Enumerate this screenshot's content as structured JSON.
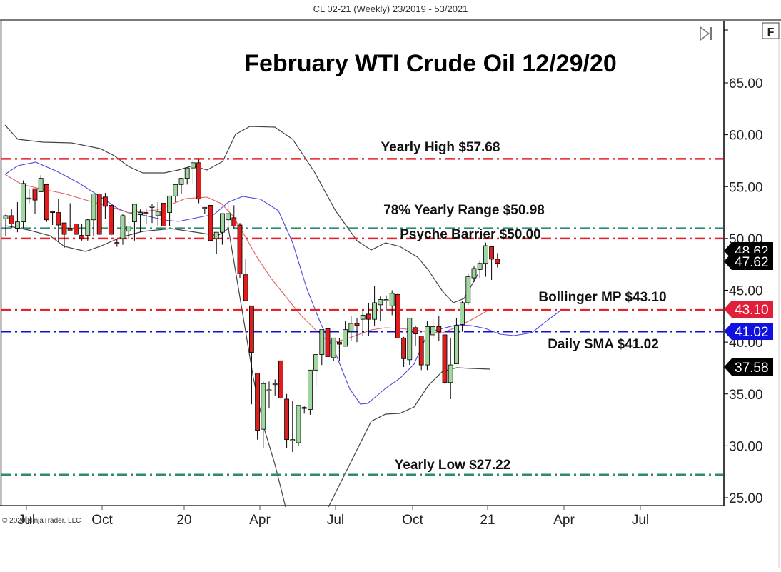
{
  "header": {
    "title": "CL 02-21 (Weekly)  23/2019 - 53/2021"
  },
  "toolbar": {
    "scroll_end_icon": "scroll-to-end-icon",
    "f_button_label": "F"
  },
  "copyright": "© 2020 NinjaTrader, LLC",
  "chart_data": {
    "type": "candlestick",
    "title": "February WTI Crude Oil 12/29/20",
    "instrument": "CL 02-21",
    "interval": "Weekly",
    "xlabel": "",
    "ylabel": "",
    "ylim": [
      25,
      67
    ],
    "y_ticks": [
      "65.00",
      "60.00",
      "55.00",
      "50.00",
      "45.00",
      "40.00",
      "35.00",
      "30.00",
      "25.00"
    ],
    "x_ticks": [
      "Jul",
      "Oct",
      "20",
      "Apr",
      "Jul",
      "Oct",
      "21",
      "Apr",
      "Jul"
    ],
    "grid": false,
    "horizontal_lines": [
      {
        "label": "Yearly High $57.68",
        "value": 57.68,
        "color": "#e8202a",
        "style": "dash-dot"
      },
      {
        "label": "78% Yearly Range $50.98",
        "value": 50.98,
        "color": "#2e8b6e",
        "style": "dash-dot"
      },
      {
        "label": "Psyche Barrier $50.00",
        "value": 50.0,
        "color": "#e8202a",
        "style": "dash-dot"
      },
      {
        "label": "Bollinger MP $43.10",
        "value": 43.1,
        "color": "#e8202a",
        "style": "dash-dot"
      },
      {
        "label": "Daily SMA $41.02",
        "value": 41.02,
        "color": "#1010d0",
        "style": "dash-dot"
      },
      {
        "label": "Yearly Low $27.22",
        "value": 27.22,
        "color": "#2e8b6e",
        "style": "dash-dot"
      }
    ],
    "price_tags": [
      {
        "value": "48.62",
        "color": "#000000"
      },
      {
        "value": "47.62",
        "color": "#000000"
      },
      {
        "value": "43.10",
        "color": "#e0203a"
      },
      {
        "value": "41.02",
        "color": "#1010e0"
      },
      {
        "value": "37.58",
        "color": "#000000"
      }
    ],
    "indicators": [
      "Bollinger upper band (black)",
      "Bollinger lower band (black)",
      "Moving average (blue)",
      "Moving average (pink)"
    ],
    "candles_approx": [
      {
        "o": 51.9,
        "h": 52.3,
        "l": 50.2,
        "c": 52.2
      },
      {
        "o": 52.2,
        "h": 52.8,
        "l": 51.0,
        "c": 51.4
      },
      {
        "o": 51.0,
        "h": 53.5,
        "l": 50.6,
        "c": 51.6
      },
      {
        "o": 51.6,
        "h": 55.6,
        "l": 51.0,
        "c": 55.3
      },
      {
        "o": 53.9,
        "h": 54.8,
        "l": 53.4,
        "c": 53.9
      },
      {
        "o": 54.8,
        "h": 54.8,
        "l": 52.4,
        "c": 53.7
      },
      {
        "o": 54.5,
        "h": 56.1,
        "l": 54.5,
        "c": 55.8
      },
      {
        "o": 55.2,
        "h": 55.2,
        "l": 51.6,
        "c": 51.8
      },
      {
        "o": 52.6,
        "h": 52.6,
        "l": 51.3,
        "c": 52.5
      },
      {
        "o": 52.5,
        "h": 53.8,
        "l": 49.7,
        "c": 51.3
      },
      {
        "o": 51.5,
        "h": 51.5,
        "l": 49.1,
        "c": 50.4
      },
      {
        "o": 51.0,
        "h": 53.4,
        "l": 50.8,
        "c": 50.8
      },
      {
        "o": 51.4,
        "h": 51.4,
        "l": 50.3,
        "c": 50.4
      },
      {
        "o": 50.3,
        "h": 51.4,
        "l": 49.8,
        "c": 50.0
      },
      {
        "o": 50.3,
        "h": 51.9,
        "l": 49.8,
        "c": 51.8
      },
      {
        "o": 51.8,
        "h": 52.8,
        "l": 50.2,
        "c": 54.3
      },
      {
        "o": 54.3,
        "h": 54.3,
        "l": 50.4,
        "c": 50.4
      },
      {
        "o": 54.0,
        "h": 54.4,
        "l": 51.9,
        "c": 53.1
      },
      {
        "o": 53.2,
        "h": 53.2,
        "l": 50.2,
        "c": 50.4
      },
      {
        "o": 49.6,
        "h": 50.0,
        "l": 49.2,
        "c": 49.5
      },
      {
        "o": 50.0,
        "h": 52.4,
        "l": 49.4,
        "c": 52.2
      },
      {
        "o": 50.7,
        "h": 50.7,
        "l": 50.0,
        "c": 51.2
      },
      {
        "o": 51.6,
        "h": 52.5,
        "l": 49.8,
        "c": 53.3
      },
      {
        "o": 52.3,
        "h": 52.8,
        "l": 50.6,
        "c": 52.5
      },
      {
        "o": 52.5,
        "h": 52.9,
        "l": 51.4,
        "c": 52.4
      },
      {
        "o": 53.0,
        "h": 53.3,
        "l": 51.5,
        "c": 53.1
      },
      {
        "o": 52.2,
        "h": 53.5,
        "l": 51.2,
        "c": 52.6
      },
      {
        "o": 53.4,
        "h": 53.4,
        "l": 51.2,
        "c": 51.2
      },
      {
        "o": 52.5,
        "h": 54.0,
        "l": 51.2,
        "c": 54.1
      },
      {
        "o": 54.1,
        "h": 55.0,
        "l": 53.5,
        "c": 55.2
      },
      {
        "o": 55.2,
        "h": 55.8,
        "l": 54.3,
        "c": 55.8
      },
      {
        "o": 55.8,
        "h": 56.7,
        "l": 55.2,
        "c": 56.8
      },
      {
        "o": 56.8,
        "h": 57.6,
        "l": 55.2,
        "c": 57.3
      },
      {
        "o": 57.3,
        "h": 57.6,
        "l": 53.4,
        "c": 53.8
      },
      {
        "o": 53.0,
        "h": 53.0,
        "l": 52.4,
        "c": 53.0
      },
      {
        "o": 53.2,
        "h": 53.2,
        "l": 49.8,
        "c": 49.8
      },
      {
        "o": 50.0,
        "h": 50.4,
        "l": 48.5,
        "c": 50.6
      },
      {
        "o": 50.6,
        "h": 51.4,
        "l": 49.4,
        "c": 52.4
      },
      {
        "o": 51.8,
        "h": 53.2,
        "l": 50.8,
        "c": 52.4
      },
      {
        "o": 52.0,
        "h": 53.2,
        "l": 51.0,
        "c": 51.2
      },
      {
        "o": 51.3,
        "h": 51.5,
        "l": 46.2,
        "c": 46.6
      },
      {
        "o": 46.5,
        "h": 48.0,
        "l": 44.8,
        "c": 44.0
      },
      {
        "o": 43.5,
        "h": 43.5,
        "l": 34.0,
        "c": 39.0
      },
      {
        "o": 37.0,
        "h": 37.0,
        "l": 30.6,
        "c": 31.5
      },
      {
        "o": 31.6,
        "h": 36.2,
        "l": 29.8,
        "c": 36.0
      },
      {
        "o": 35.3,
        "h": 36.2,
        "l": 33.6,
        "c": 35.4
      },
      {
        "o": 36.0,
        "h": 36.4,
        "l": 34.8,
        "c": 36.0
      },
      {
        "o": 38.2,
        "h": 38.2,
        "l": 34.5,
        "c": 34.6
      },
      {
        "o": 34.5,
        "h": 35.0,
        "l": 29.8,
        "c": 30.6
      },
      {
        "o": 30.6,
        "h": 34.3,
        "l": 29.4,
        "c": 30.6
      },
      {
        "o": 30.3,
        "h": 33.9,
        "l": 30.0,
        "c": 33.9
      },
      {
        "o": 33.6,
        "h": 33.8,
        "l": 33.1,
        "c": 33.7
      },
      {
        "o": 33.5,
        "h": 37.3,
        "l": 33.0,
        "c": 37.3
      },
      {
        "o": 37.3,
        "h": 38.8,
        "l": 35.8,
        "c": 38.8
      },
      {
        "o": 38.8,
        "h": 41.2,
        "l": 37.8,
        "c": 41.2
      },
      {
        "o": 41.3,
        "h": 41.3,
        "l": 38.6,
        "c": 38.6
      },
      {
        "o": 38.5,
        "h": 40.4,
        "l": 38.2,
        "c": 40.4
      },
      {
        "o": 40.0,
        "h": 40.4,
        "l": 38.2,
        "c": 39.8
      },
      {
        "o": 39.6,
        "h": 42.0,
        "l": 39.6,
        "c": 41.2
      },
      {
        "o": 41.0,
        "h": 42.5,
        "l": 40.1,
        "c": 41.8
      },
      {
        "o": 41.8,
        "h": 42.3,
        "l": 40.0,
        "c": 41.6
      },
      {
        "o": 42.2,
        "h": 43.0,
        "l": 40.6,
        "c": 42.6
      },
      {
        "o": 42.7,
        "h": 43.8,
        "l": 40.6,
        "c": 42.2
      },
      {
        "o": 42.2,
        "h": 45.4,
        "l": 41.6,
        "c": 43.8
      },
      {
        "o": 43.6,
        "h": 44.4,
        "l": 42.0,
        "c": 44.1
      },
      {
        "o": 44.1,
        "h": 44.5,
        "l": 43.0,
        "c": 44.1
      },
      {
        "o": 43.5,
        "h": 45.0,
        "l": 42.6,
        "c": 44.7
      },
      {
        "o": 44.6,
        "h": 44.8,
        "l": 40.5,
        "c": 40.4
      },
      {
        "o": 40.4,
        "h": 40.5,
        "l": 37.6,
        "c": 38.4
      },
      {
        "o": 38.3,
        "h": 42.3,
        "l": 37.8,
        "c": 42.3
      },
      {
        "o": 41.4,
        "h": 41.6,
        "l": 39.6,
        "c": 40.8
      },
      {
        "o": 40.6,
        "h": 40.6,
        "l": 37.3,
        "c": 37.8
      },
      {
        "o": 37.8,
        "h": 42.0,
        "l": 37.3,
        "c": 41.5
      },
      {
        "o": 40.7,
        "h": 42.2,
        "l": 40.3,
        "c": 41.5
      },
      {
        "o": 41.5,
        "h": 42.5,
        "l": 40.1,
        "c": 41.0
      },
      {
        "o": 40.7,
        "h": 40.7,
        "l": 36.0,
        "c": 36.1
      },
      {
        "o": 36.1,
        "h": 40.4,
        "l": 34.5,
        "c": 37.8
      },
      {
        "o": 37.9,
        "h": 42.3,
        "l": 37.9,
        "c": 41.6
      },
      {
        "o": 41.7,
        "h": 44.0,
        "l": 41.0,
        "c": 43.8
      },
      {
        "o": 43.8,
        "h": 46.6,
        "l": 43.6,
        "c": 46.3
      },
      {
        "o": 46.2,
        "h": 47.3,
        "l": 45.8,
        "c": 47.1
      },
      {
        "o": 47.0,
        "h": 47.8,
        "l": 46.2,
        "c": 47.6
      },
      {
        "o": 47.6,
        "h": 49.6,
        "l": 46.3,
        "c": 49.3
      },
      {
        "o": 49.2,
        "h": 49.3,
        "l": 46.0,
        "c": 48.0
      },
      {
        "o": 48.0,
        "h": 48.6,
        "l": 47.2,
        "c": 47.6
      }
    ]
  }
}
